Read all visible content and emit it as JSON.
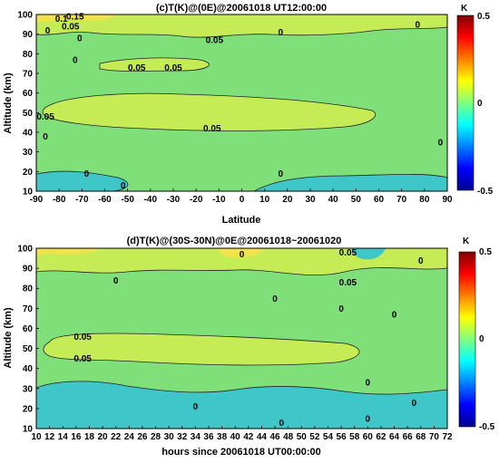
{
  "colors": {
    "zero": "#7fe07a",
    "pos1": "#c6ec55",
    "pos2": "#f2e24a",
    "neg1": "#3fc6c8"
  },
  "chart_data": [
    {
      "type": "heatmap",
      "title": "(c)T(K)@(0E)@20061018 UT12:00:00",
      "xlabel": "Latitude",
      "ylabel": "Altitude (km)",
      "xlim": [
        -90,
        90
      ],
      "ylim": [
        10,
        100
      ],
      "x_ticks": [
        "-90",
        "-80",
        "-70",
        "-60",
        "-50",
        "-40",
        "-30",
        "-20",
        "-10",
        "0",
        "10",
        "20",
        "30",
        "40",
        "50",
        "60",
        "70",
        "80",
        "90"
      ],
      "y_ticks": [
        "10",
        "20",
        "30",
        "40",
        "50",
        "60",
        "70",
        "80",
        "90",
        "100"
      ],
      "contour_labels": [
        {
          "text": "0.05",
          "x": -13,
          "y": 42
        },
        {
          "text": "0.05",
          "x": -86,
          "y": 48
        },
        {
          "text": "0.05",
          "x": -30,
          "y": 73
        },
        {
          "text": "0.05",
          "x": -46,
          "y": 73
        },
        {
          "text": "0.05",
          "x": -12,
          "y": 87
        },
        {
          "text": "0.05",
          "x": -75,
          "y": 94
        },
        {
          "text": "0.15",
          "x": -73,
          "y": 99
        },
        {
          "text": "0.1",
          "x": -79,
          "y": 98
        },
        {
          "text": "0",
          "x": -73,
          "y": 77
        },
        {
          "text": "0",
          "x": -71,
          "y": 88
        },
        {
          "text": "0",
          "x": -85,
          "y": 92
        },
        {
          "text": "0",
          "x": 17,
          "y": 91
        },
        {
          "text": "0",
          "x": -68,
          "y": 19
        },
        {
          "text": "0",
          "x": -52,
          "y": 13
        },
        {
          "text": "0",
          "x": 17,
          "y": 19
        },
        {
          "text": "0",
          "x": -86,
          "y": 38
        },
        {
          "text": "0",
          "x": 87,
          "y": 35
        },
        {
          "text": "0",
          "x": 77,
          "y": 95
        }
      ]
    },
    {
      "type": "heatmap",
      "title": "(d)T(K)@(30S-30N)@0E@20061018~20061020",
      "xlabel": "hours since 20061018 UT00:00:00",
      "ylabel": "Altitude (km)",
      "xlim": [
        10,
        72
      ],
      "ylim": [
        10,
        100
      ],
      "x_ticks": [
        "10",
        "12",
        "14",
        "16",
        "18",
        "20",
        "22",
        "24",
        "26",
        "28",
        "30",
        "32",
        "34",
        "36",
        "38",
        "40",
        "42",
        "44",
        "46",
        "48",
        "50",
        "52",
        "54",
        "56",
        "58",
        "60",
        "62",
        "64",
        "66",
        "68",
        "70",
        "72"
      ],
      "y_ticks": [
        "10",
        "20",
        "30",
        "40",
        "50",
        "60",
        "70",
        "80",
        "90",
        "100"
      ],
      "contour_labels": [
        {
          "text": "0.05",
          "x": 17,
          "y": 56
        },
        {
          "text": "0.05",
          "x": 17,
          "y": 45
        },
        {
          "text": "0.05",
          "x": 57,
          "y": 83
        },
        {
          "text": "0",
          "x": 22,
          "y": 84
        },
        {
          "text": "0",
          "x": 46,
          "y": 75
        },
        {
          "text": "0",
          "x": 56,
          "y": 70
        },
        {
          "text": "0",
          "x": 64,
          "y": 67
        },
        {
          "text": "0",
          "x": 68,
          "y": 94
        },
        {
          "text": "0",
          "x": 34,
          "y": 21
        },
        {
          "text": "0",
          "x": 47,
          "y": 13
        },
        {
          "text": "0",
          "x": 60,
          "y": 15
        },
        {
          "text": "0",
          "x": 67,
          "y": 23
        },
        {
          "text": "0",
          "x": 60,
          "y": 33
        },
        {
          "text": "0",
          "x": 41,
          "y": 97
        },
        {
          "text": "0.05",
          "x": 57,
          "y": 98
        }
      ]
    }
  ],
  "colorbars": [
    {
      "unit": "K",
      "ticks": [
        "0.5",
        "0",
        "-0.5"
      ]
    },
    {
      "unit": "K",
      "ticks": [
        "0.5",
        "0",
        "-0.5"
      ]
    }
  ]
}
